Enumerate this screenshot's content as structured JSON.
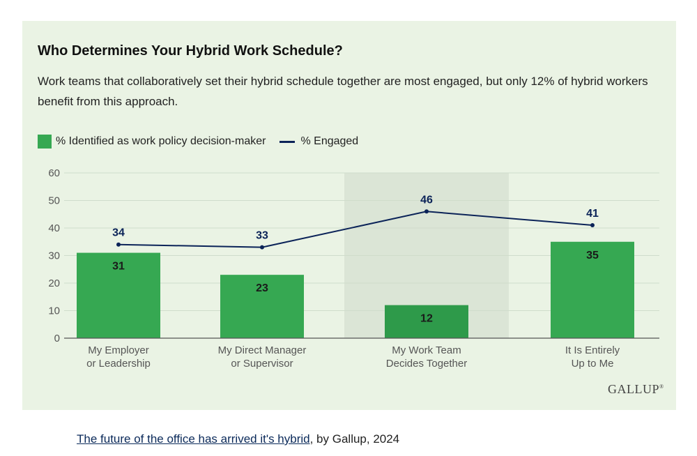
{
  "chart_data": {
    "type": "bar",
    "title": "Who Determines Your Hybrid Work Schedule?",
    "subtitle": "Work teams that collaboratively set their hybrid schedule together are most engaged, but only 12% of hybrid workers benefit from this approach.",
    "categories": [
      [
        "My Employer",
        "or Leadership"
      ],
      [
        "My Direct Manager",
        "or Supervisor"
      ],
      [
        "My Work Team",
        "Decides Together"
      ],
      [
        "It Is Entirely",
        "Up to Me"
      ]
    ],
    "series": [
      {
        "name": "% Identified as work policy decision-maker",
        "type": "bar",
        "values": [
          31,
          23,
          12,
          35
        ],
        "color": "#36a852"
      },
      {
        "name": "% Engaged",
        "type": "line",
        "values": [
          34,
          33,
          46,
          41
        ],
        "color": "#0b2358"
      }
    ],
    "highlight_category": 2,
    "highlight_bar_color": "#2e9a4a",
    "highlight_band_color": "#dbe5d6",
    "yticks": [
      0,
      10,
      20,
      30,
      40,
      50,
      60
    ],
    "ylim": [
      0,
      60
    ],
    "grid": true,
    "legend_position": "top-left"
  },
  "brand": "GALLUP",
  "caption": {
    "link_text": "The future of the office has arrived it's hybrid",
    "rest": ", by Gallup, 2024"
  }
}
